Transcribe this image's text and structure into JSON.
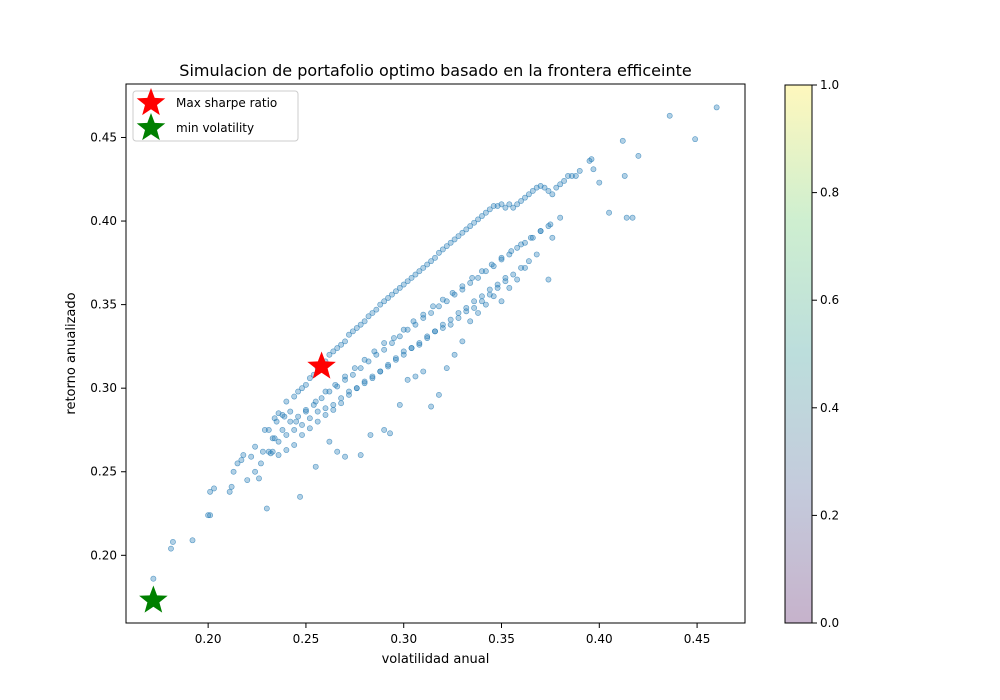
{
  "chart_data": {
    "type": "scatter",
    "title": "Simulacion de portafolio optimo   basado en la frontera efficeinte",
    "xlabel": "volatilidad anual",
    "ylabel": "retorno anualizado",
    "xlim": [
      0.158,
      0.4745
    ],
    "ylim": [
      0.1595,
      0.482
    ],
    "xticks": [
      0.2,
      0.25,
      0.3,
      0.35,
      0.4,
      0.45
    ],
    "xtick_labels": [
      "0.20",
      "0.25",
      "0.30",
      "0.35",
      "0.40",
      "0.45"
    ],
    "yticks": [
      0.2,
      0.25,
      0.3,
      0.35,
      0.4,
      0.45
    ],
    "ytick_labels": [
      "0.20",
      "0.25",
      "0.30",
      "0.35",
      "0.40",
      "0.45"
    ],
    "grid": false,
    "legend": {
      "placement": "upper-left",
      "entries": [
        {
          "label": "Max sharpe ratio",
          "color": "#ff0000",
          "marker": "star"
        },
        {
          "label": "min volatility",
          "color": "#008000",
          "marker": "star"
        }
      ]
    },
    "point_color": "#1f77b4",
    "point_alpha": 0.35,
    "portfolios": {
      "x": [
        0.172,
        0.181,
        0.182,
        0.192,
        0.2,
        0.201,
        0.201,
        0.203,
        0.211,
        0.212,
        0.213,
        0.215,
        0.217,
        0.218,
        0.22,
        0.222,
        0.224,
        0.224,
        0.226,
        0.227,
        0.228,
        0.229,
        0.23,
        0.231,
        0.232,
        0.233,
        0.233,
        0.234,
        0.235,
        0.236,
        0.238,
        0.239,
        0.24,
        0.242,
        0.244,
        0.246,
        0.248,
        0.25,
        0.252,
        0.254,
        0.256,
        0.258,
        0.26,
        0.262,
        0.264,
        0.266,
        0.268,
        0.27,
        0.272,
        0.274,
        0.276,
        0.278,
        0.28,
        0.282,
        0.284,
        0.286,
        0.288,
        0.29,
        0.292,
        0.294,
        0.296,
        0.298,
        0.3,
        0.302,
        0.304,
        0.306,
        0.308,
        0.31,
        0.312,
        0.314,
        0.316,
        0.318,
        0.32,
        0.322,
        0.324,
        0.326,
        0.328,
        0.33,
        0.332,
        0.334,
        0.336,
        0.338,
        0.34,
        0.342,
        0.344,
        0.346,
        0.348,
        0.35,
        0.352,
        0.354,
        0.356,
        0.358,
        0.36,
        0.362,
        0.364,
        0.366,
        0.368,
        0.37,
        0.372,
        0.374,
        0.376,
        0.378,
        0.38,
        0.382,
        0.384,
        0.386,
        0.388,
        0.39,
        0.395,
        0.396,
        0.397,
        0.4,
        0.405,
        0.412,
        0.413,
        0.414,
        0.42,
        0.436,
        0.449,
        0.46,
        0.247,
        0.255,
        0.262,
        0.266,
        0.27,
        0.278,
        0.283,
        0.29,
        0.293,
        0.298,
        0.302,
        0.306,
        0.31,
        0.314,
        0.318,
        0.322,
        0.326,
        0.33,
        0.334,
        0.338,
        0.342,
        0.346,
        0.35,
        0.354,
        0.358,
        0.362,
        0.368,
        0.374,
        0.376,
        0.417,
        0.231,
        0.236,
        0.24,
        0.244,
        0.248,
        0.252,
        0.256,
        0.26,
        0.264,
        0.268,
        0.272,
        0.276,
        0.28,
        0.284,
        0.288,
        0.292,
        0.296,
        0.3,
        0.304,
        0.308,
        0.312,
        0.316,
        0.32,
        0.324,
        0.328,
        0.332,
        0.336,
        0.34,
        0.344,
        0.348,
        0.352,
        0.356,
        0.36,
        0.364,
        0.234,
        0.238,
        0.242,
        0.246,
        0.25,
        0.254,
        0.258,
        0.262,
        0.266,
        0.27,
        0.274,
        0.278,
        0.282,
        0.286,
        0.29,
        0.294,
        0.298,
        0.302,
        0.306,
        0.31,
        0.314,
        0.318,
        0.322,
        0.326,
        0.33,
        0.334,
        0.338,
        0.342,
        0.346,
        0.35,
        0.354,
        0.358,
        0.362,
        0.366,
        0.37,
        0.374,
        0.236,
        0.24,
        0.244,
        0.248,
        0.252,
        0.256,
        0.26,
        0.264,
        0.268,
        0.272,
        0.276,
        0.28,
        0.284,
        0.288,
        0.292,
        0.296,
        0.3,
        0.304,
        0.308,
        0.312,
        0.316,
        0.32,
        0.324,
        0.328,
        0.332,
        0.336,
        0.34,
        0.344,
        0.348,
        0.352,
        0.245,
        0.25,
        0.255,
        0.26,
        0.265,
        0.27,
        0.275,
        0.28,
        0.285,
        0.29,
        0.295,
        0.3,
        0.305,
        0.31,
        0.315,
        0.32,
        0.325,
        0.33,
        0.335,
        0.34,
        0.345,
        0.35,
        0.355,
        0.36,
        0.365,
        0.37,
        0.375,
        0.38
      ],
      "y": [
        0.186,
        0.204,
        0.208,
        0.209,
        0.224,
        0.224,
        0.238,
        0.24,
        0.238,
        0.241,
        0.25,
        0.255,
        0.257,
        0.26,
        0.245,
        0.259,
        0.25,
        0.265,
        0.246,
        0.255,
        0.262,
        0.275,
        0.228,
        0.275,
        0.261,
        0.262,
        0.27,
        0.282,
        0.28,
        0.285,
        0.284,
        0.283,
        0.292,
        0.286,
        0.295,
        0.298,
        0.3,
        0.302,
        0.306,
        0.308,
        0.312,
        0.316,
        0.316,
        0.32,
        0.322,
        0.324,
        0.326,
        0.328,
        0.332,
        0.334,
        0.336,
        0.338,
        0.34,
        0.343,
        0.345,
        0.347,
        0.35,
        0.352,
        0.354,
        0.356,
        0.358,
        0.36,
        0.362,
        0.364,
        0.366,
        0.368,
        0.37,
        0.372,
        0.374,
        0.376,
        0.378,
        0.381,
        0.383,
        0.385,
        0.387,
        0.389,
        0.391,
        0.393,
        0.395,
        0.397,
        0.399,
        0.401,
        0.403,
        0.405,
        0.407,
        0.409,
        0.409,
        0.41,
        0.408,
        0.41,
        0.408,
        0.41,
        0.412,
        0.414,
        0.416,
        0.418,
        0.42,
        0.421,
        0.42,
        0.418,
        0.416,
        0.42,
        0.422,
        0.424,
        0.427,
        0.427,
        0.427,
        0.43,
        0.436,
        0.437,
        0.431,
        0.423,
        0.405,
        0.448,
        0.427,
        0.402,
        0.439,
        0.463,
        0.449,
        0.468,
        0.235,
        0.253,
        0.268,
        0.262,
        0.259,
        0.26,
        0.272,
        0.275,
        0.273,
        0.29,
        0.305,
        0.307,
        0.31,
        0.289,
        0.296,
        0.312,
        0.32,
        0.328,
        0.34,
        0.345,
        0.35,
        0.355,
        0.352,
        0.36,
        0.365,
        0.372,
        0.38,
        0.365,
        0.39,
        0.402,
        0.262,
        0.268,
        0.272,
        0.275,
        0.278,
        0.282,
        0.286,
        0.288,
        0.29,
        0.294,
        0.298,
        0.3,
        0.304,
        0.306,
        0.31,
        0.314,
        0.318,
        0.322,
        0.324,
        0.326,
        0.33,
        0.334,
        0.336,
        0.338,
        0.342,
        0.346,
        0.348,
        0.352,
        0.356,
        0.36,
        0.364,
        0.368,
        0.372,
        0.376,
        0.27,
        0.275,
        0.28,
        0.283,
        0.286,
        0.29,
        0.294,
        0.298,
        0.301,
        0.305,
        0.308,
        0.312,
        0.316,
        0.32,
        0.323,
        0.327,
        0.331,
        0.335,
        0.338,
        0.342,
        0.345,
        0.349,
        0.352,
        0.356,
        0.359,
        0.363,
        0.366,
        0.37,
        0.373,
        0.377,
        0.38,
        0.384,
        0.387,
        0.39,
        0.394,
        0.397,
        0.26,
        0.263,
        0.266,
        0.272,
        0.276,
        0.28,
        0.284,
        0.287,
        0.291,
        0.296,
        0.3,
        0.303,
        0.307,
        0.31,
        0.313,
        0.317,
        0.32,
        0.324,
        0.327,
        0.331,
        0.334,
        0.338,
        0.341,
        0.345,
        0.348,
        0.352,
        0.355,
        0.359,
        0.362,
        0.366,
        0.28,
        0.287,
        0.292,
        0.298,
        0.302,
        0.307,
        0.312,
        0.317,
        0.322,
        0.327,
        0.33,
        0.335,
        0.34,
        0.344,
        0.349,
        0.353,
        0.357,
        0.361,
        0.366,
        0.37,
        0.374,
        0.378,
        0.382,
        0.386,
        0.39,
        0.394,
        0.398,
        0.402
      ]
    },
    "max_sharpe": {
      "x": 0.258,
      "y": 0.313
    },
    "min_volatility": {
      "x": 0.172,
      "y": 0.173
    },
    "colorbar": {
      "range": [
        0.0,
        1.0
      ],
      "ticks": [
        0.0,
        0.2,
        0.4,
        0.6,
        0.8,
        1.0
      ],
      "tick_labels": [
        "0.0",
        "0.2",
        "0.4",
        "0.6",
        "0.8",
        "1.0"
      ],
      "colormap": "viridis",
      "alpha": 0.3
    }
  }
}
